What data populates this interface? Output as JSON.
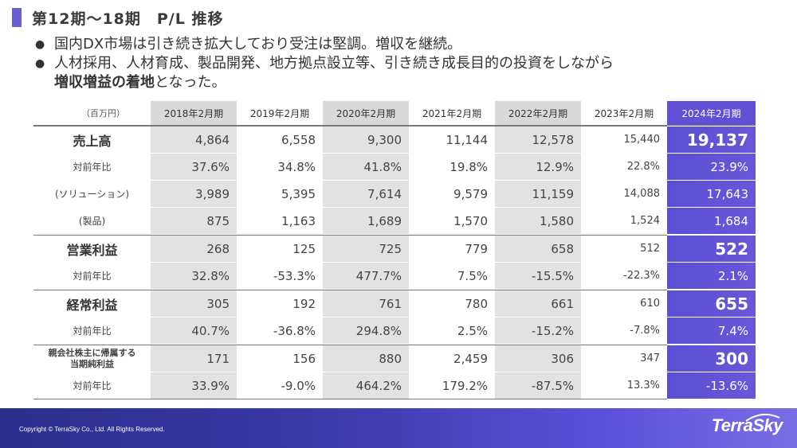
{
  "title": "第12期～18期　P/L 推移",
  "bullets": [
    {
      "text": "国内DX市場は引き続き拡大しており受注は堅調。増収を継続。"
    },
    {
      "text_a": "人材採用、人材育成、製品開発、地方拠点設立等、引き続き成長目的の投資をしながら",
      "bold": "増収増益の着地",
      "text_b": "となった。"
    }
  ],
  "table": {
    "unit": "（百万円）",
    "columns": [
      "2018年2月期",
      "2019年2月期",
      "2020年2月期",
      "2021年2月期",
      "2022年2月期",
      "2023年2月期",
      "2024年2月期"
    ],
    "rows": [
      {
        "label": "売上高",
        "values": [
          "4,864",
          "6,558",
          "9,300",
          "11,144",
          "12,578",
          "15,440",
          "19,137"
        ]
      },
      {
        "label": "対前年比",
        "values": [
          "37.6%",
          "34.8%",
          "41.8%",
          "19.8%",
          "12.9%",
          "22.8%",
          "23.9%"
        ]
      },
      {
        "label": "(ソリューション)",
        "values": [
          "3,989",
          "5,395",
          "7,614",
          "9,579",
          "11,159",
          "14,088",
          "17,643"
        ]
      },
      {
        "label": "(製品)",
        "values": [
          "875",
          "1,163",
          "1,689",
          "1,570",
          "1,580",
          "1,524",
          "1,684"
        ]
      },
      {
        "label": "営業利益",
        "values": [
          "268",
          "125",
          "725",
          "779",
          "658",
          "512",
          "522"
        ]
      },
      {
        "label": "対前年比",
        "values": [
          "32.8%",
          "-53.3%",
          "477.7%",
          "7.5%",
          "-15.5%",
          "-22.3%",
          "2.1%"
        ]
      },
      {
        "label": "経常利益",
        "values": [
          "305",
          "192",
          "761",
          "780",
          "661",
          "610",
          "655"
        ]
      },
      {
        "label": "対前年比",
        "values": [
          "40.7%",
          "-36.8%",
          "294.8%",
          "2.5%",
          "-15.2%",
          "-7.8%",
          "7.4%"
        ]
      },
      {
        "label_line1": "親会社株主に帰属する",
        "label_line2": "当期純利益",
        "values": [
          "171",
          "156",
          "880",
          "2,459",
          "306",
          "347",
          "300"
        ]
      },
      {
        "label": "対前年比",
        "values": [
          "33.9%",
          "-9.0%",
          "464.2%",
          "179.2%",
          "-87.5%",
          "13.3%",
          "-13.6%"
        ]
      }
    ]
  },
  "footer": {
    "copyright": "Copyright © TerraSky Co., Ltd. All Rights Reserved.",
    "logo": "TerraSky"
  },
  "colors": {
    "accent": "#6150d6",
    "shade": "#e2e2e2",
    "footer_dark": "#2a2f8c"
  }
}
